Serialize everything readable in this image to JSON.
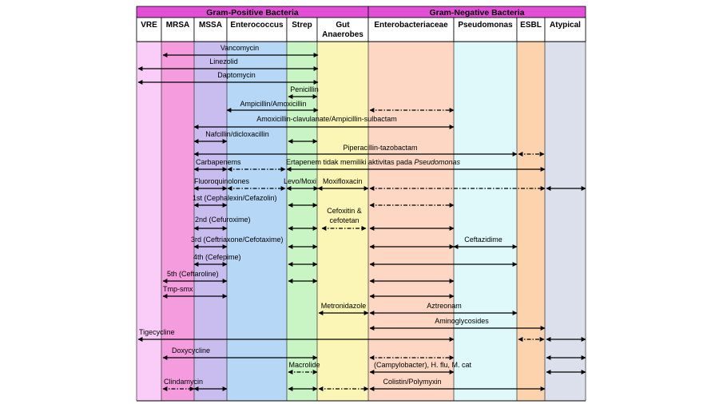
{
  "groups": {
    "gram_positive": "Gram-Positive Bacteria",
    "gram_negative": "Gram-Negative Bacteria"
  },
  "columns": [
    {
      "label": "VRE",
      "color": "#f9cdf7"
    },
    {
      "label": "MRSA",
      "color": "#f59cde"
    },
    {
      "label": "MSSA",
      "color": "#c9bdf0"
    },
    {
      "label": "Enterococcus",
      "color": "#b7d7f6"
    },
    {
      "label": "Strep",
      "color": "#c9f4c4"
    },
    {
      "label": "Gut\nAnaerobes",
      "color": "#fbf6b5"
    },
    {
      "label": "Enterobacteriaceae",
      "color": "#fdd6c4"
    },
    {
      "label": "Pseudomonas",
      "color": "#dff8fa"
    },
    {
      "label": "ESBL",
      "color": "#fcd3ad"
    },
    {
      "label": "Atypical",
      "color": "#dcdfec"
    }
  ],
  "header_color": "#e24fd6",
  "drugs": [
    {
      "label": "Vancomycin"
    },
    {
      "label": "Linezolid"
    },
    {
      "label": "Daptomycin"
    },
    {
      "label": "Penicillin"
    },
    {
      "label": "Ampicillin/Amoxicillin"
    },
    {
      "label": "Amoxicillin-clavulanate/Ampicillin-sulbactam"
    },
    {
      "label": "Nafcillin/dicloxacillin"
    },
    {
      "label": "Piperacillin-tazobactam"
    },
    {
      "label": "Carbapenems"
    },
    {
      "label": "Ertapenem tidak memiliki aktivitas pada ",
      "italic_suffix": "Pseudomonas"
    },
    {
      "label": "Fluoroquinolones"
    },
    {
      "label": "Levo/Moxi"
    },
    {
      "label": "Moxifloxacin"
    },
    {
      "label": "1st (Cephalexin/Cefazolin)"
    },
    {
      "label": "Cefoxitin &\ncefotetan"
    },
    {
      "label": "2nd (Cefuroxime)"
    },
    {
      "label": "3rd (Ceftriaxone/Cefotaxime)"
    },
    {
      "label": "Ceftazidime"
    },
    {
      "label": "4th (Cefepime)"
    },
    {
      "label": "5th (Ceftaroline)"
    },
    {
      "label": "Tmp-smx"
    },
    {
      "label": "Metronidazole"
    },
    {
      "label": "Aztreonam"
    },
    {
      "label": "Aminoglycosides"
    },
    {
      "label": "Tigecycline"
    },
    {
      "label": "Doxycycline"
    },
    {
      "label": "Macrolide"
    },
    {
      "label": "(Campylobacter), H. flu, M. cat"
    },
    {
      "label": "Clindamycin"
    },
    {
      "label": "Colistin/Polymyxin"
    }
  ]
}
